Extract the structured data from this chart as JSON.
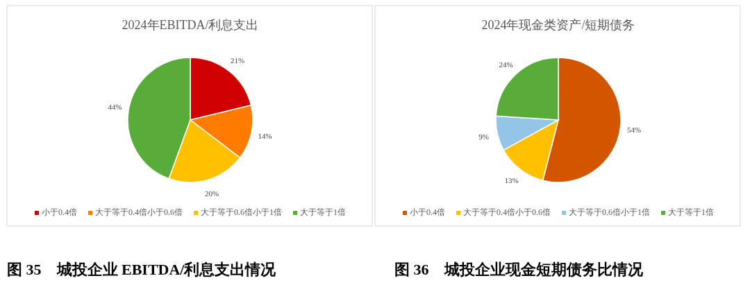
{
  "chart_data": [
    {
      "type": "pie",
      "title": "2024年EBITDA/利息支出",
      "categories": [
        "小于0.4倍",
        "大于等于0.4倍小于0.6倍",
        "大于等于0.6倍小于1倍",
        "大于等于1倍"
      ],
      "values": [
        21,
        14,
        20,
        44
      ],
      "value_labels": [
        "21%",
        "14%",
        "20%",
        "44%"
      ],
      "colors": [
        "#d10000",
        "#ff7c00",
        "#ffc000",
        "#5aac3a"
      ],
      "legend": "bottom",
      "annotations": [
        "图 35　城投企业 EBITDA/利息支出情况"
      ]
    },
    {
      "type": "pie",
      "title": "2024年现金类资产/短期债务",
      "categories": [
        "小于0.4倍",
        "大于等于0.4倍小于0.6倍",
        "大于等于0.6倍小于1倍",
        "大于等于1倍"
      ],
      "values": [
        54,
        13,
        9,
        24
      ],
      "value_labels": [
        "54%",
        "13%",
        "9%",
        "24%"
      ],
      "colors": [
        "#d45500",
        "#ffc000",
        "#92c5e8",
        "#5aac3a"
      ],
      "legend": "bottom",
      "annotations": [
        "图 36　城投企业现金短期债务比情况"
      ]
    }
  ]
}
